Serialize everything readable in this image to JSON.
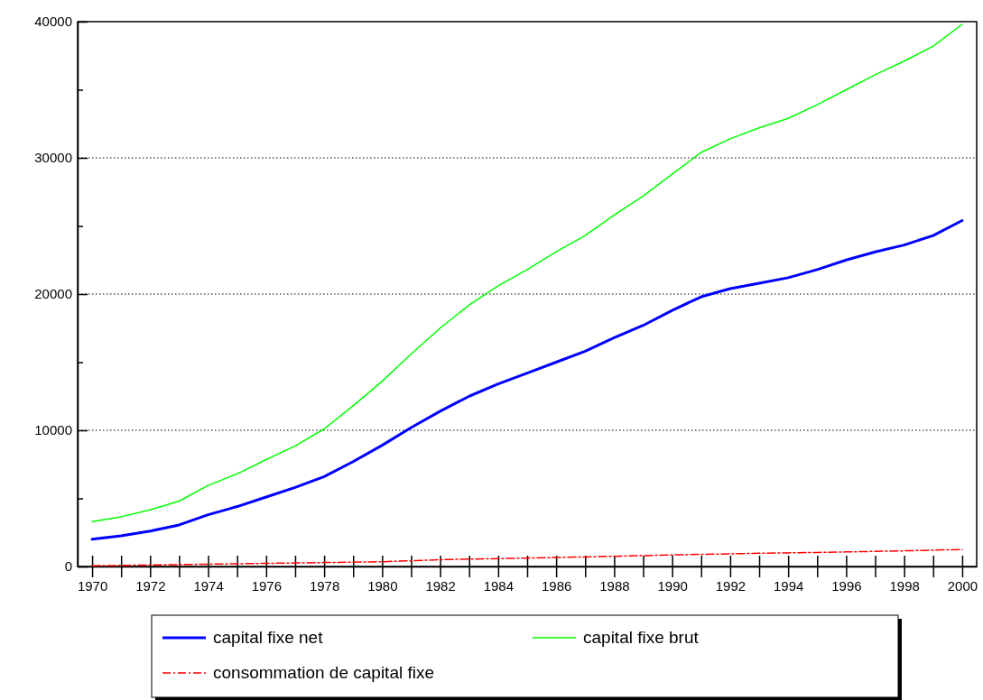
{
  "chart_data": {
    "type": "line",
    "x": [
      1970,
      1971,
      1972,
      1973,
      1974,
      1975,
      1976,
      1977,
      1978,
      1979,
      1980,
      1981,
      1982,
      1983,
      1984,
      1985,
      1986,
      1987,
      1988,
      1989,
      1990,
      1991,
      1992,
      1993,
      1994,
      1995,
      1996,
      1997,
      1998,
      1999,
      2000
    ],
    "series": [
      {
        "name": "capital fixe net",
        "color": "#0000ff",
        "values": [
          2000,
          2250,
          2600,
          3050,
          3800,
          4400,
          5100,
          5800,
          6600,
          7700,
          8900,
          10200,
          11400,
          12500,
          13400,
          14200,
          15000,
          15800,
          16800,
          17700,
          18800,
          19800,
          20400,
          20800,
          21200,
          21800,
          22500,
          23100,
          23600,
          24300,
          25400
        ]
      },
      {
        "name": "capital fixe brut",
        "color": "#00ff00",
        "values": [
          3300,
          3650,
          4150,
          4800,
          5950,
          6800,
          7850,
          8850,
          10100,
          11800,
          13600,
          15600,
          17500,
          19200,
          20600,
          21800,
          23100,
          24300,
          25800,
          27200,
          28800,
          30400,
          31400,
          32200,
          32900,
          33900,
          35000,
          36100,
          37100,
          38200,
          39800
        ]
      },
      {
        "name": "consommation de capital fixe",
        "color": "#ff0000",
        "line_style": "dashed",
        "values": [
          50,
          80,
          110,
          140,
          170,
          200,
          230,
          260,
          290,
          320,
          350,
          420,
          500,
          540,
          580,
          620,
          660,
          700,
          750,
          800,
          850,
          890,
          930,
          970,
          1000,
          1030,
          1070,
          1110,
          1150,
          1200,
          1250
        ]
      }
    ],
    "xlim": [
      1969.5,
      2000.5
    ],
    "xticks": [
      1970,
      {
        "value": 1971,
        "label": null
      },
      1972,
      {
        "value": 1973,
        "label": null
      },
      1974,
      {
        "value": 1975,
        "label": null
      },
      1976,
      {
        "value": 1977,
        "label": null
      },
      1978,
      {
        "value": 1979,
        "label": null
      },
      1980,
      {
        "value": 1981,
        "label": null
      },
      1982,
      {
        "value": 1983,
        "label": null
      },
      1984,
      {
        "value": 1985,
        "label": null
      },
      1986,
      {
        "value": 1987,
        "label": null
      },
      1988,
      {
        "value": 1989,
        "label": null
      },
      1990,
      {
        "value": 1991,
        "label": null
      },
      1992,
      {
        "value": 1993,
        "label": null
      },
      1994,
      {
        "value": 1995,
        "label": null
      },
      1996,
      {
        "value": 1997,
        "label": null
      },
      1998,
      {
        "value": 1999,
        "label": null
      },
      2000
    ],
    "ylim": [
      0,
      40000
    ],
    "yticks": [
      0,
      {
        "value": 5000,
        "label": null
      },
      10000,
      {
        "value": 15000,
        "label": null
      },
      20000,
      {
        "value": 25000,
        "label": null
      },
      30000,
      {
        "value": 35000,
        "label": null
      },
      40000
    ],
    "grid": "y",
    "legend": "bottom",
    "line_style": "solid"
  }
}
